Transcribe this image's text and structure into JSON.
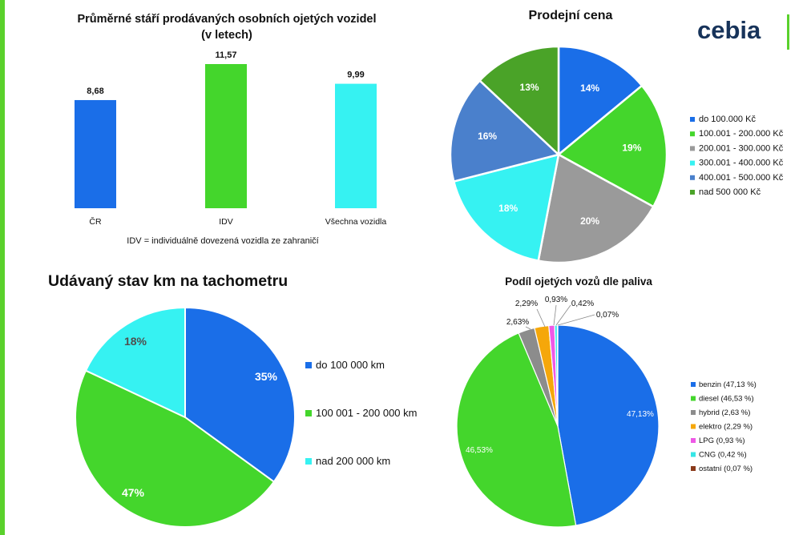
{
  "brand": {
    "logo_text": "cebia",
    "accent": "#5ad12c"
  },
  "chart_data": [
    {
      "id": "age",
      "type": "bar",
      "title_line1": "Průměrné stáří prodávaných osobních ojetých vozidel",
      "title_line2": "(v letech)",
      "categories": [
        "ČR",
        "IDV",
        "Všechna vozidla"
      ],
      "values": [
        8.68,
        11.57,
        9.99
      ],
      "value_labels": [
        "8,68",
        "11,57",
        "9,99"
      ],
      "colors": [
        "#1a6ee8",
        "#44d62c",
        "#36f2f2"
      ],
      "footnote": "IDV = individuálně dovezená vozidla ze zahraničí",
      "ylim": [
        0,
        12
      ]
    },
    {
      "id": "price",
      "type": "pie",
      "title": "Prodejní cena",
      "labels": [
        "do 100.000 Kč",
        "100.001 - 200.000 Kč",
        "200.001 - 300.000 Kč",
        "300.001 - 400.000 Kč",
        "400.001 - 500.000 Kč",
        "nad 500 000 Kč"
      ],
      "values": [
        14,
        19,
        20,
        18,
        16,
        13
      ],
      "value_labels": [
        "14%",
        "19%",
        "20%",
        "18%",
        "16%",
        "13%"
      ],
      "colors": [
        "#1a6ee8",
        "#44d62c",
        "#9a9a9a",
        "#36f2f2",
        "#4a80cc",
        "#4aa328"
      ],
      "legend": "right"
    },
    {
      "id": "km",
      "type": "pie",
      "title": "Udávaný stav km na tachometru",
      "labels": [
        "do 100 000 km",
        "100 001 - 200 000 km",
        "nad 200 000 km"
      ],
      "values": [
        35,
        47,
        18
      ],
      "value_labels": [
        "35%",
        "47%",
        "18%"
      ],
      "colors": [
        "#1a6ee8",
        "#44d62c",
        "#36f2f2"
      ],
      "legend": "right"
    },
    {
      "id": "fuel",
      "type": "pie",
      "title": "Podíl ojetých vozů dle paliva",
      "labels": [
        "benzin (47,13 %)",
        "diesel (46,53 %)",
        "hybrid (2,63 %)",
        "elektro (2,29 %)",
        "LPG (0,93 %)",
        "CNG (0,42 %)",
        "ostatní (0,07 %)"
      ],
      "values": [
        47.13,
        46.53,
        2.63,
        2.29,
        0.93,
        0.42,
        0.07
      ],
      "value_labels": [
        "47,13%",
        "46,53%",
        "2,63%",
        "2,29%",
        "0,93%",
        "0,42%",
        "0,07%"
      ],
      "colors": [
        "#1a6ee8",
        "#44d62c",
        "#8c8c8c",
        "#f5a70a",
        "#ee58e6",
        "#36e6e6",
        "#8a3a1a"
      ],
      "legend": "right"
    }
  ]
}
